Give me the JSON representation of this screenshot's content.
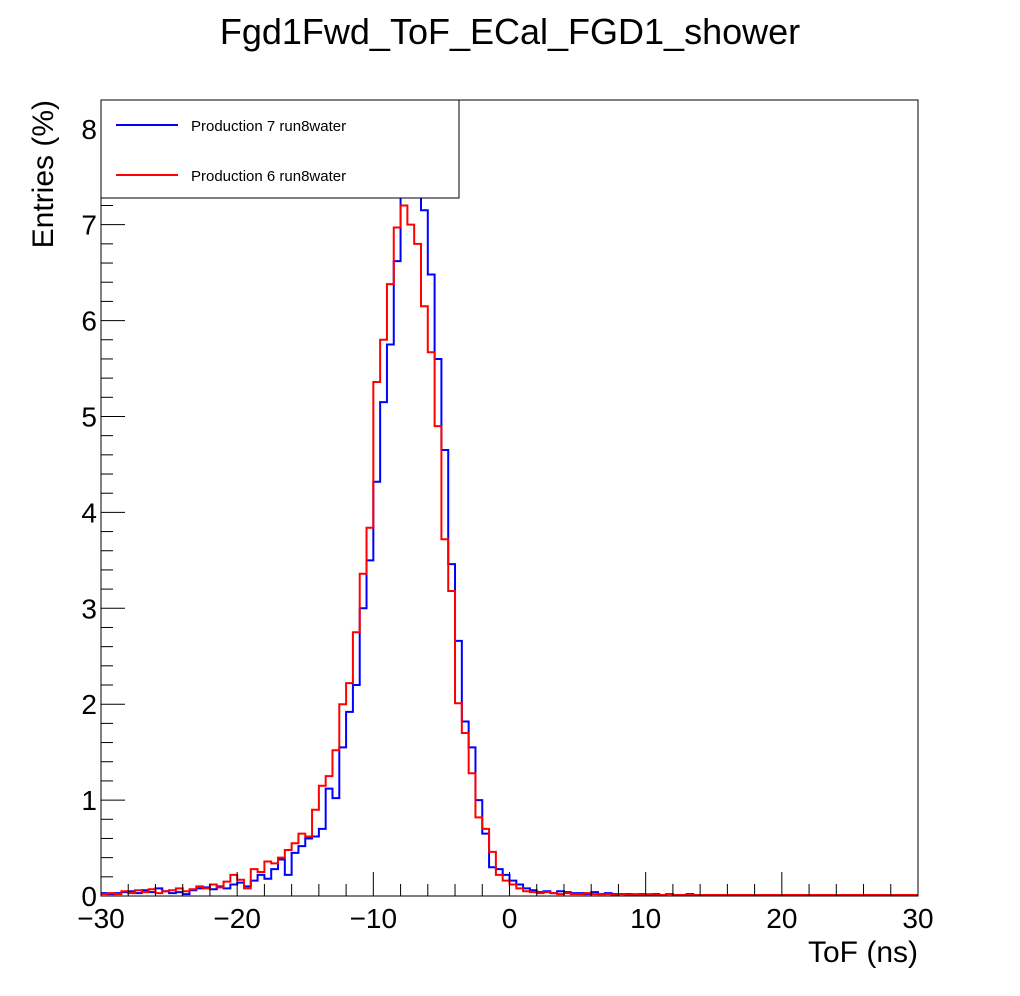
{
  "chart_data": {
    "type": "line",
    "title": "Fgd1Fwd_ToF_ECal_FGD1_shower",
    "xlabel": "ToF (ns)",
    "ylabel": "Entries (%)",
    "xlim": [
      -30,
      30
    ],
    "ylim": [
      0,
      8.3
    ],
    "grid": false,
    "legend_placement": "top-left",
    "bin_width": 0.5,
    "x_ticks": [
      -30,
      -20,
      -10,
      0,
      10,
      20,
      30
    ],
    "x_tick_labels": [
      "−30",
      "−20",
      "−10",
      "0",
      "10",
      "20",
      "30"
    ],
    "y_ticks": [
      0,
      1,
      2,
      3,
      4,
      5,
      6,
      7,
      8
    ],
    "y_tick_labels": [
      "0",
      "1",
      "2",
      "3",
      "4",
      "5",
      "6",
      "7",
      "8"
    ],
    "x_bin_edges_start": -30,
    "series": [
      {
        "name": "Production 7 run8water",
        "color": "#0000ff",
        "values": [
          0.03,
          0.02,
          0.03,
          0.04,
          0.05,
          0.03,
          0.06,
          0.04,
          0.08,
          0.05,
          0.03,
          0.04,
          0.02,
          0.06,
          0.08,
          0.09,
          0.07,
          0.1,
          0.08,
          0.12,
          0.14,
          0.1,
          0.16,
          0.22,
          0.18,
          0.28,
          0.38,
          0.22,
          0.45,
          0.52,
          0.6,
          0.62,
          0.7,
          1.12,
          1.02,
          1.55,
          1.92,
          2.2,
          3.0,
          3.5,
          4.32,
          5.15,
          5.75,
          6.62,
          7.35,
          8.0,
          7.4,
          7.15,
          6.48,
          5.6,
          4.65,
          3.46,
          2.66,
          1.82,
          1.55,
          1.0,
          0.65,
          0.3,
          0.28,
          0.22,
          0.16,
          0.12,
          0.08,
          0.06,
          0.04,
          0.05,
          0.03,
          0.05,
          0.04,
          0.03,
          0.03,
          0.02,
          0.04,
          0.02,
          0.03,
          0.02,
          0.02,
          0.02,
          0.01,
          0.02,
          0.01,
          0.02,
          0.01,
          0.02,
          0.01,
          0.01,
          0.02,
          0.01,
          0.01,
          0.01,
          0.01,
          0.01,
          0.01,
          0.01,
          0.01,
          0.01,
          0.01,
          0.01,
          0.01,
          0.01,
          0.01,
          0.01,
          0.01,
          0.01,
          0.01,
          0.01,
          0.01,
          0.01,
          0.01,
          0.01,
          0.01,
          0.01,
          0.01,
          0.01,
          0.01,
          0.01,
          0.01,
          0.01,
          0.01,
          0.01
        ]
      },
      {
        "name": "Production 6 run8water",
        "color": "#ff0000",
        "values": [
          0.02,
          0.03,
          0.02,
          0.05,
          0.03,
          0.06,
          0.04,
          0.07,
          0.03,
          0.05,
          0.06,
          0.08,
          0.05,
          0.07,
          0.1,
          0.08,
          0.12,
          0.09,
          0.15,
          0.22,
          0.17,
          0.08,
          0.28,
          0.25,
          0.36,
          0.34,
          0.4,
          0.48,
          0.55,
          0.65,
          0.62,
          0.9,
          1.15,
          1.25,
          1.52,
          2.0,
          2.22,
          2.75,
          3.36,
          3.84,
          5.36,
          5.8,
          6.38,
          6.97,
          7.2,
          7.0,
          6.8,
          6.15,
          5.67,
          4.9,
          3.72,
          3.18,
          2.01,
          1.7,
          1.28,
          0.82,
          0.7,
          0.46,
          0.22,
          0.16,
          0.12,
          0.08,
          0.05,
          0.04,
          0.03,
          0.04,
          0.03,
          0.02,
          0.03,
          0.02,
          0.02,
          0.03,
          0.02,
          0.02,
          0.02,
          0.01,
          0.02,
          0.01,
          0.02,
          0.01,
          0.02,
          0.01,
          0.01,
          0.02,
          0.01,
          0.01,
          0.01,
          0.01,
          0.01,
          0.01,
          0.01,
          0.01,
          0.01,
          0.01,
          0.01,
          0.01,
          0.01,
          0.01,
          0.01,
          0.01,
          0.01,
          0.01,
          0.01,
          0.01,
          0.01,
          0.01,
          0.01,
          0.01,
          0.01,
          0.01,
          0.01,
          0.01,
          0.01,
          0.01,
          0.01,
          0.01,
          0.01,
          0.01,
          0.01,
          0.01
        ]
      }
    ]
  }
}
